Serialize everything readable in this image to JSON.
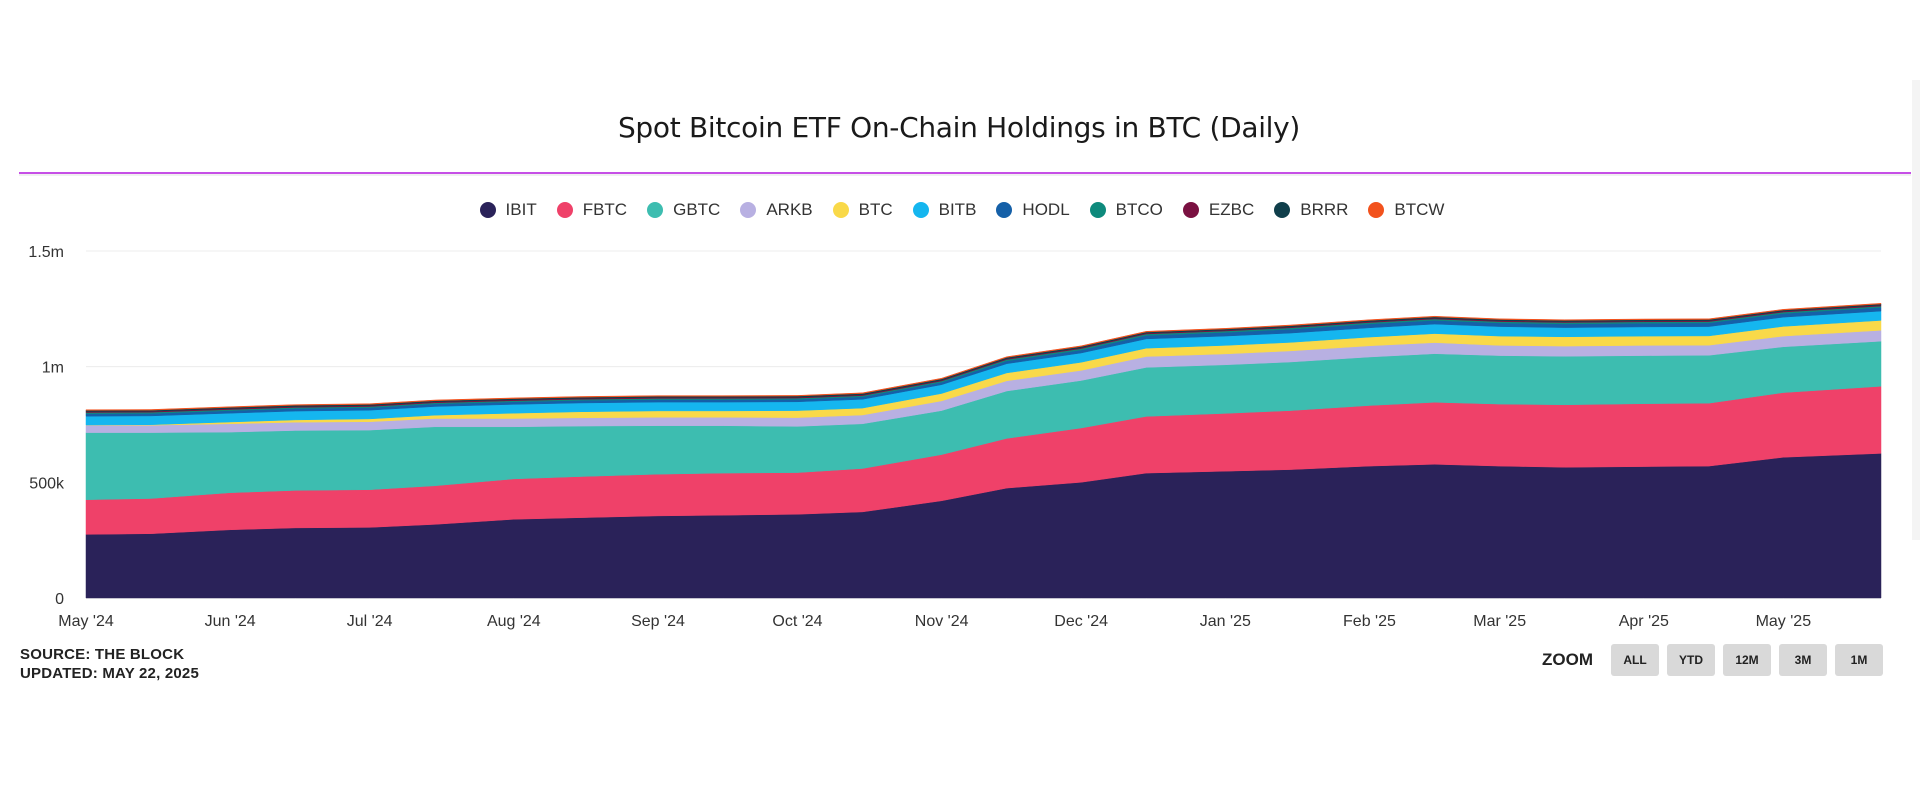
{
  "header": {
    "title": "Spot Bitcoin ETF On-Chain Holdings in BTC (Daily)"
  },
  "footer": {
    "source": "SOURCE: THE BLOCK",
    "updated": "UPDATED: MAY 22, 2025"
  },
  "zoom": {
    "label": "ZOOM",
    "buttons": [
      "ALL",
      "YTD",
      "12M",
      "3M",
      "1M"
    ]
  },
  "chart_data": {
    "type": "area",
    "stacked": true,
    "title": "Spot Bitcoin ETF On-Chain Holdings in BTC (Daily)",
    "xlabel": "",
    "ylabel": "",
    "ylim": [
      0,
      1500000
    ],
    "yticks": [
      {
        "value": 0,
        "label": "0"
      },
      {
        "value": 500000,
        "label": "500k"
      },
      {
        "value": 1000000,
        "label": "1m"
      },
      {
        "value": 1500000,
        "label": "1.5m"
      }
    ],
    "xticks": [
      "May '24",
      "Jun '24",
      "Jul '24",
      "Aug '24",
      "Sep '24",
      "Oct '24",
      "Nov '24",
      "Dec '24",
      "Jan '25",
      "Feb '25",
      "Mar '25",
      "Apr '25",
      "May '25"
    ],
    "x_range": [
      "2024-05-01",
      "2025-05-22"
    ],
    "x": [
      "2024-05-01",
      "2024-05-15",
      "2024-06-01",
      "2024-06-15",
      "2024-07-01",
      "2024-07-15",
      "2024-08-01",
      "2024-08-15",
      "2024-09-01",
      "2024-09-15",
      "2024-10-01",
      "2024-10-15",
      "2024-11-01",
      "2024-11-15",
      "2024-12-01",
      "2024-12-15",
      "2025-01-01",
      "2025-01-15",
      "2025-02-01",
      "2025-02-15",
      "2025-03-01",
      "2025-03-15",
      "2025-04-01",
      "2025-04-15",
      "2025-05-01",
      "2025-05-22"
    ],
    "legend_position": "top-center",
    "series": [
      {
        "name": "IBIT",
        "color": "#2a2259",
        "values": [
          275000,
          278000,
          295000,
          303000,
          305000,
          318000,
          340000,
          347000,
          355000,
          358000,
          362000,
          372000,
          420000,
          475000,
          500000,
          540000,
          548000,
          555000,
          570000,
          578000,
          570000,
          565000,
          568000,
          570000,
          608000,
          625000
        ]
      },
      {
        "name": "FBTC",
        "color": "#ef4169",
        "values": [
          150000,
          152000,
          160000,
          162000,
          163000,
          167000,
          175000,
          178000,
          180000,
          182000,
          180000,
          188000,
          200000,
          215000,
          235000,
          245000,
          250000,
          255000,
          262000,
          268000,
          268000,
          270000,
          272000,
          272000,
          280000,
          290000
        ]
      },
      {
        "name": "GBTC",
        "color": "#3dbdb0",
        "values": [
          290000,
          285000,
          262000,
          259000,
          258000,
          255000,
          225000,
          218000,
          210000,
          205000,
          200000,
          193000,
          190000,
          205000,
          205000,
          212000,
          210000,
          210000,
          210000,
          210000,
          210000,
          210000,
          208000,
          207000,
          198000,
          195000
        ]
      },
      {
        "name": "ARKB",
        "color": "#b8b0e2",
        "values": [
          32000,
          32000,
          36000,
          36000,
          36000,
          36000,
          36000,
          36000,
          36000,
          36000,
          38000,
          38000,
          42000,
          44000,
          44000,
          47000,
          47000,
          48000,
          48000,
          48000,
          44000,
          44000,
          44000,
          44000,
          46000,
          47000
        ]
      },
      {
        "name": "BTC",
        "color": "#f9d949",
        "values": [
          1000,
          2000,
          8000,
          10000,
          12000,
          14000,
          23000,
          26000,
          28000,
          28000,
          30000,
          30000,
          32000,
          34000,
          35000,
          36000,
          37000,
          37000,
          38000,
          39000,
          40000,
          40000,
          40000,
          40000,
          42000,
          43000
        ]
      },
      {
        "name": "BITB",
        "color": "#15b6ef",
        "values": [
          38000,
          38000,
          38000,
          38000,
          38000,
          38000,
          38000,
          38000,
          38000,
          38000,
          38000,
          38000,
          38000,
          40000,
          40000,
          40000,
          40000,
          40000,
          40000,
          41000,
          41000,
          40000,
          40000,
          40000,
          40000,
          40000
        ]
      },
      {
        "name": "HODL",
        "color": "#1560a8",
        "values": [
          11000,
          11000,
          11000,
          11000,
          11000,
          11000,
          11000,
          11000,
          11000,
          11000,
          11000,
          11000,
          11000,
          12000,
          13000,
          15000,
          16000,
          17000,
          17000,
          16000,
          16000,
          16000,
          16000,
          16000,
          16000,
          16000
        ]
      },
      {
        "name": "BTCO",
        "color": "#0e8a7c",
        "values": [
          5000,
          5000,
          5000,
          5000,
          5000,
          5000,
          5000,
          5000,
          5000,
          5000,
          5000,
          5000,
          5000,
          6000,
          6000,
          6000,
          6000,
          6000,
          6000,
          6000,
          6000,
          6000,
          6000,
          6000,
          6000,
          6000
        ]
      },
      {
        "name": "EZBC",
        "color": "#7a1141",
        "values": [
          4000,
          4000,
          4000,
          4000,
          4000,
          4000,
          4000,
          4000,
          4000,
          4000,
          4000,
          4000,
          4000,
          4000,
          4000,
          4000,
          4000,
          4000,
          4000,
          4000,
          4000,
          4000,
          4000,
          4000,
          4000,
          4000
        ]
      },
      {
        "name": "BRRR",
        "color": "#103f4b",
        "values": [
          5000,
          5000,
          5000,
          5000,
          5000,
          5000,
          5000,
          5000,
          5000,
          5000,
          5000,
          5000,
          5000,
          5000,
          5000,
          5000,
          5000,
          5000,
          5000,
          5000,
          5000,
          5000,
          5000,
          5000,
          5000,
          5000
        ]
      },
      {
        "name": "BTCW",
        "color": "#f2521d",
        "values": [
          3000,
          3000,
          3000,
          3000,
          3000,
          3000,
          3000,
          3000,
          3000,
          3000,
          3000,
          3000,
          3000,
          3000,
          3000,
          3000,
          3000,
          3000,
          3000,
          3000,
          3000,
          3000,
          3000,
          3000,
          3000,
          3000
        ]
      }
    ]
  }
}
